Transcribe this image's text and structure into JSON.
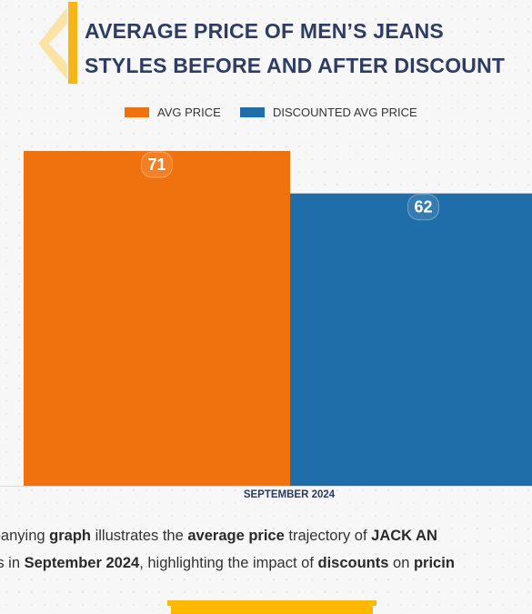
{
  "header": {
    "title_line1": "AVERAGE PRICE OF MEN’S JEANS",
    "title_line2": "STYLES BEFORE AND AFTER DISCOUNT"
  },
  "legend": {
    "items": [
      {
        "label": "AVG PRICE",
        "color": "#f0720f"
      },
      {
        "label": "DISCOUNTED AVG PRICE",
        "color": "#1f6ea9"
      }
    ]
  },
  "chart_data": {
    "type": "bar",
    "categories": [
      "SEPTEMBER 2024"
    ],
    "series": [
      {
        "name": "AVG PRICE",
        "values": [
          71
        ],
        "color": "#f0720f"
      },
      {
        "name": "DISCOUNTED AVG PRICE",
        "values": [
          62
        ],
        "color": "#1f6ea9"
      }
    ],
    "title": "AVERAGE PRICE OF MEN’S JEANS STYLES BEFORE AND AFTER DISCOUNT",
    "xlabel": "",
    "ylabel": "",
    "ylim": [
      0,
      71
    ],
    "grid": false,
    "legend_position": "top"
  },
  "caption": {
    "line1": [
      {
        "text": "mpanying ",
        "bold": false
      },
      {
        "text": "graph",
        "bold": true
      },
      {
        "text": " illustrates the ",
        "bold": false
      },
      {
        "text": "average price",
        "bold": true
      },
      {
        "text": " trajectory of ",
        "bold": false
      },
      {
        "text": "JACK AN",
        "bold": true
      }
    ],
    "line2": [
      {
        "text": "ans in ",
        "bold": false
      },
      {
        "text": "September 2024",
        "bold": true
      },
      {
        "text": ", highlighting the impact of ",
        "bold": false
      },
      {
        "text": "discounts",
        "bold": true
      },
      {
        "text": " on ",
        "bold": false
      },
      {
        "text": "pricin",
        "bold": true
      }
    ]
  }
}
